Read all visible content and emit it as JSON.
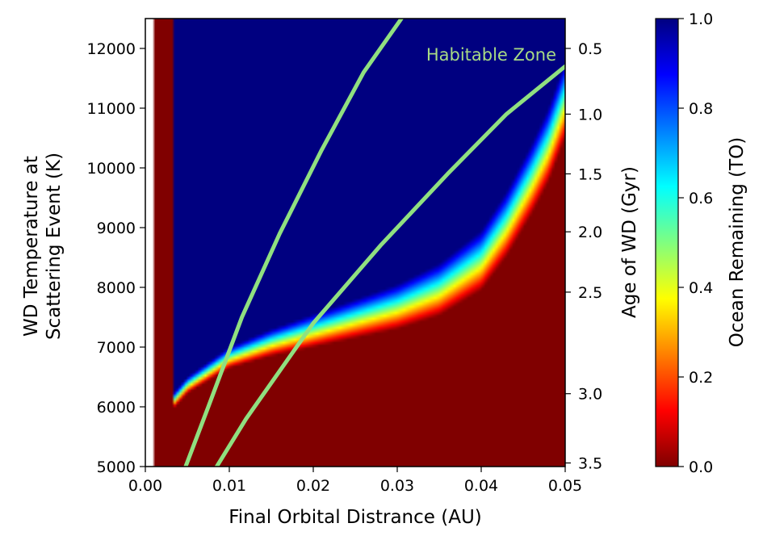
{
  "chart_data": {
    "type": "heatmap",
    "title": "",
    "xlabel": "Final Orbital Distrance (AU)",
    "ylabel": "WD Temperature at\nScattering Event (K)",
    "y2label": "Age of WD (Gyr)",
    "colorbar_label": "Ocean Remaining (TO)",
    "colormap": "jet",
    "xlim": [
      0.0,
      0.05
    ],
    "ylim": [
      5000,
      12500
    ],
    "clim": [
      0.0,
      1.0
    ],
    "x_ticks": [
      "0.00",
      "0.01",
      "0.02",
      "0.03",
      "0.04",
      "0.05"
    ],
    "y_ticks": [
      "5000",
      "6000",
      "7000",
      "8000",
      "9000",
      "10000",
      "11000",
      "12000"
    ],
    "y2_ticks": [
      {
        "label": "0.5",
        "temperature": 12000
      },
      {
        "label": "1.0",
        "temperature": 10900
      },
      {
        "label": "1.5",
        "temperature": 9900
      },
      {
        "label": "2.0",
        "temperature": 8930
      },
      {
        "label": "2.5",
        "temperature": 7920
      },
      {
        "label": "3.0",
        "temperature": 6220
      },
      {
        "label": "3.5",
        "temperature": 5060
      }
    ],
    "colorbar_ticks": [
      "0.0",
      "0.2",
      "0.4",
      "0.6",
      "0.8",
      "1.0"
    ],
    "transition_boundary": {
      "description": "temperature above which ocean fully lost (TO = 0)",
      "points": [
        [
          0.0035,
          6250
        ],
        [
          0.005,
          6500
        ],
        [
          0.01,
          7000
        ],
        [
          0.015,
          7300
        ],
        [
          0.02,
          7550
        ],
        [
          0.025,
          7800
        ],
        [
          0.03,
          8050
        ],
        [
          0.035,
          8400
        ],
        [
          0.04,
          8950
        ],
        [
          0.043,
          9600
        ],
        [
          0.046,
          10400
        ],
        [
          0.048,
          11000
        ],
        [
          0.0495,
          11600
        ]
      ],
      "transition_width_K": [
        [
          0.0035,
          250
        ],
        [
          0.01,
          350
        ],
        [
          0.02,
          550
        ],
        [
          0.03,
          750
        ],
        [
          0.04,
          1000
        ],
        [
          0.05,
          1300
        ]
      ]
    },
    "min_distance_AU": 0.0035,
    "white_strip_below_AU": 0.001,
    "series": [
      {
        "name": "Habitable Zone",
        "points": [
          [
            0.0048,
            5000
          ],
          [
            0.0075,
            6000
          ],
          [
            0.0115,
            7500
          ],
          [
            0.016,
            8900
          ],
          [
            0.021,
            10300
          ],
          [
            0.026,
            11600
          ],
          [
            0.0305,
            12500
          ]
        ]
      },
      {
        "points": [
          [
            0.0085,
            5000
          ],
          [
            0.012,
            5800
          ],
          [
            0.02,
            7400
          ],
          [
            0.028,
            8700
          ],
          [
            0.036,
            9900
          ],
          [
            0.043,
            10900
          ],
          [
            0.05,
            11700
          ]
        ]
      }
    ],
    "annotation": {
      "text": "Habitable Zone",
      "color": "#a8db85"
    },
    "colors": {
      "hz_line": "#90e080",
      "saturated_low": "#800000"
    }
  }
}
